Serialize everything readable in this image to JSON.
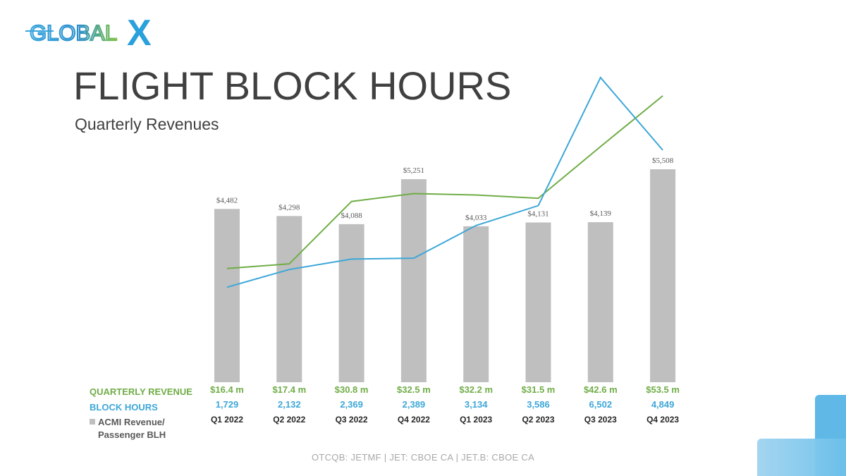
{
  "logo": {
    "text": "GLOBALX",
    "mark": "X"
  },
  "header": {
    "title": "FLIGHT BLOCK HOURS",
    "subtitle": "Quarterly Revenues"
  },
  "legend": {
    "revenue_label": "QUARTERLY REVENUE",
    "hours_label": "BLOCK HOURS",
    "acmi_label_line1": "ACMI Revenue/",
    "acmi_label_line2": "Passenger BLH"
  },
  "footer": {
    "ticker_text": "OTCQB: JETMF | JET: CBOE CA | JET.B: CBOE CA"
  },
  "colors": {
    "bar": "#bfbfbf",
    "revenue": "#70ad47",
    "hours": "#3da7d8",
    "text": "#404040"
  },
  "chart_data": {
    "type": "bar",
    "categories": [
      "Q1 2022",
      "Q2 2022",
      "Q3 2022",
      "Q4 2022",
      "Q1 2023",
      "Q2 2023",
      "Q3 2023",
      "Q4 2023"
    ],
    "series": [
      {
        "name": "ACMI Revenue/ Passenger BLH",
        "type": "bar",
        "values": [
          4482,
          4298,
          4088,
          5251,
          4033,
          4131,
          4139,
          5508
        ],
        "labels": [
          "$4,482",
          "$4,298",
          "$4,088",
          "$5,251",
          "$4,033",
          "$4,131",
          "$4,139",
          "$5,508"
        ]
      },
      {
        "name": "QUARTERLY REVENUE",
        "type": "line",
        "values": [
          16.4,
          17.4,
          30.8,
          32.5,
          32.2,
          31.5,
          42.6,
          53.5
        ],
        "labels": [
          "$16.4 m",
          "$17.4 m",
          "$30.8 m",
          "$32.5 m",
          "$32.2 m",
          "$31.5 m",
          "$42.6 m",
          "$53.5 m"
        ]
      },
      {
        "name": "BLOCK HOURS",
        "type": "line",
        "values": [
          1729,
          2132,
          2369,
          2389,
          3134,
          3586,
          6502,
          4849
        ],
        "labels": [
          "1,729",
          "2,132",
          "2,369",
          "2,389",
          "3,134",
          "3,586",
          "6,502",
          "4,849"
        ]
      }
    ],
    "title": "FLIGHT BLOCK HOURS",
    "subtitle": "Quarterly Revenues",
    "bar_ylim": [
      0,
      6000
    ],
    "revenue_ylim": [
      0,
      60
    ],
    "hours_ylim": [
      0,
      6500
    ],
    "grid": false
  }
}
